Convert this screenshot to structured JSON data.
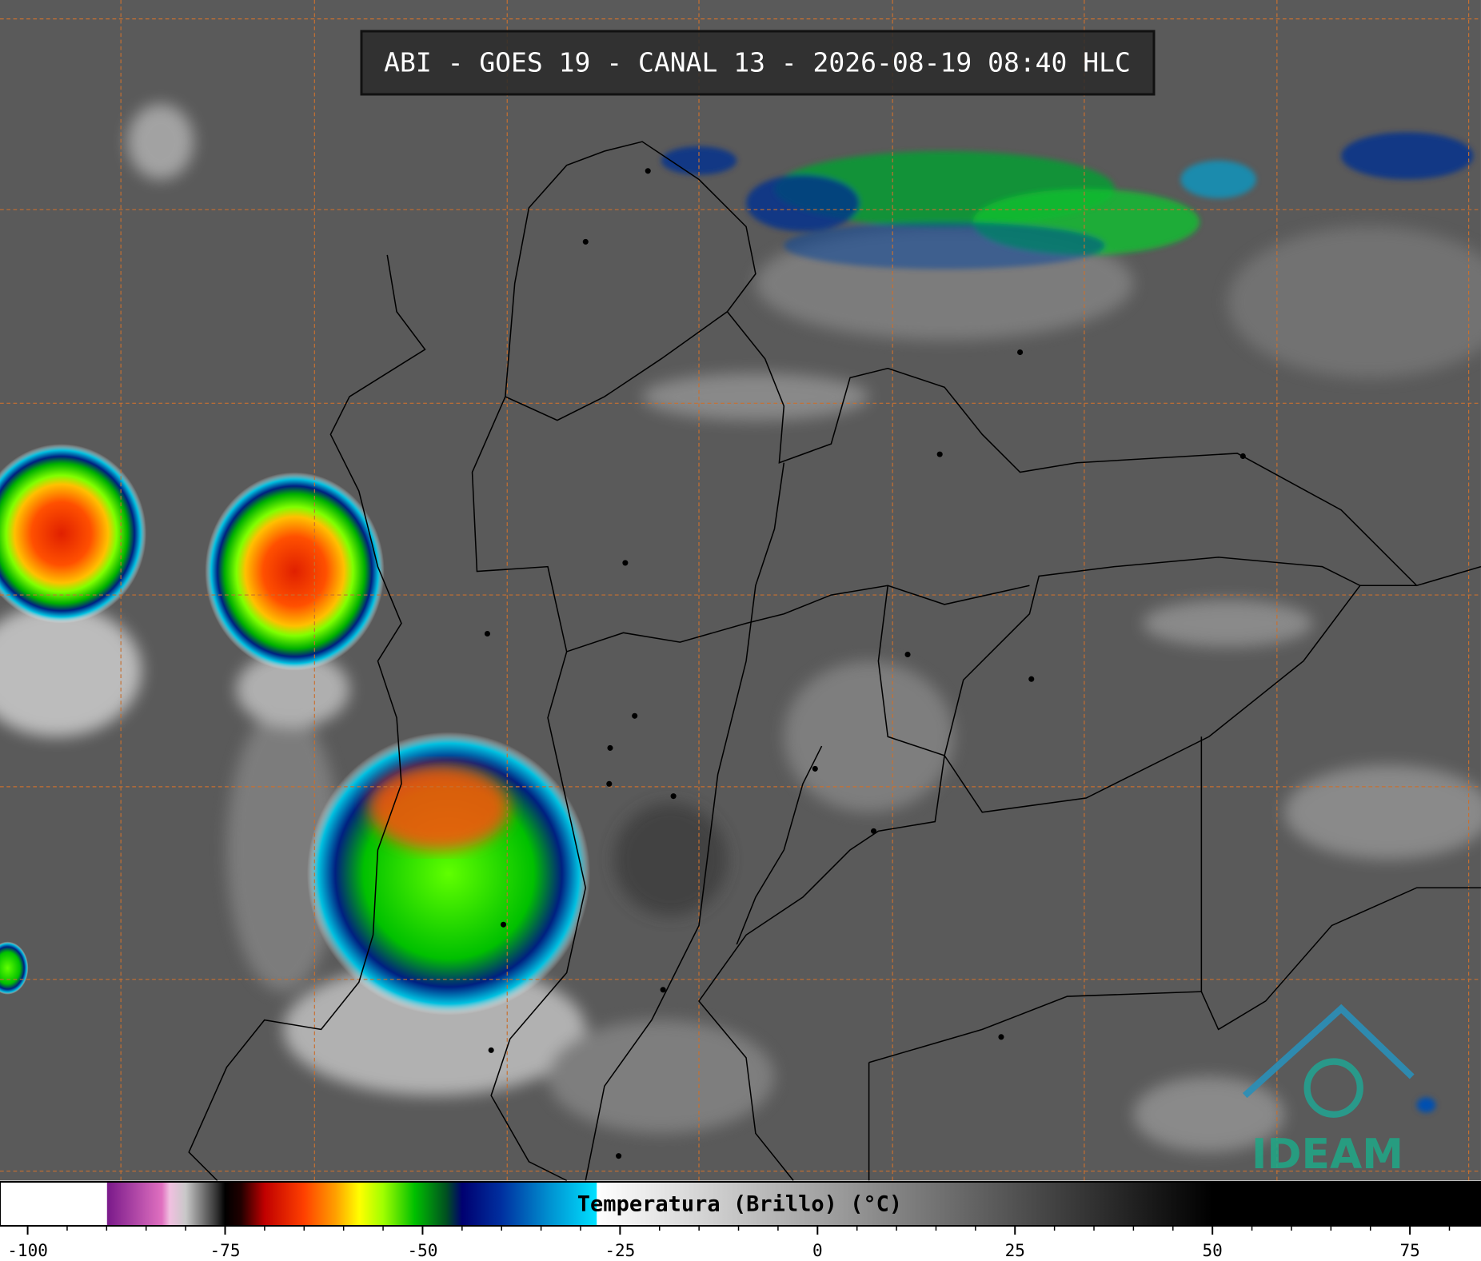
{
  "title": "ABI - GOES 19 - CANAL 13 - 2026-08-19 08:40 HLC",
  "logo": "IDEAM",
  "colorbar": {
    "label": "Temperatura (Brillo) (°C)",
    "xlim": [
      -103.5,
      84
    ],
    "ticks": [
      -100,
      -75,
      -50,
      -25,
      0,
      25,
      50,
      75
    ],
    "minor_ticks": [
      -95,
      -90,
      -85,
      -80,
      -70,
      -65,
      -60,
      -55,
      -45,
      -40,
      -35,
      -30,
      -20,
      -15,
      -10,
      -5,
      5,
      10,
      15,
      20,
      30,
      35,
      40,
      45,
      55,
      60,
      65,
      70,
      80
    ],
    "stops": [
      {
        "value": -90,
        "color": "#ffffff"
      },
      {
        "value": -89.9,
        "color": "#7a1a8a"
      },
      {
        "value": -83,
        "color": "#e070c0"
      },
      {
        "value": -82,
        "color": "#f0c0e0"
      },
      {
        "value": -80,
        "color": "#c8c8c8"
      },
      {
        "value": -76,
        "color": "#303030"
      },
      {
        "value": -75,
        "color": "#000000"
      },
      {
        "value": -73,
        "color": "#200000"
      },
      {
        "value": -70,
        "color": "#c00000"
      },
      {
        "value": -65,
        "color": "#ff4000"
      },
      {
        "value": -61,
        "color": "#ffa000"
      },
      {
        "value": -58,
        "color": "#ffff00"
      },
      {
        "value": -55,
        "color": "#a0ff00"
      },
      {
        "value": -51,
        "color": "#00c000"
      },
      {
        "value": -47,
        "color": "#005020"
      },
      {
        "value": -45,
        "color": "#000070"
      },
      {
        "value": -40,
        "color": "#0030a0"
      },
      {
        "value": -34,
        "color": "#0090d0"
      },
      {
        "value": -28,
        "color": "#00e0ff"
      },
      {
        "value": -27.9,
        "color": "#ffffff"
      },
      {
        "value": 50,
        "color": "#000000"
      }
    ]
  }
}
